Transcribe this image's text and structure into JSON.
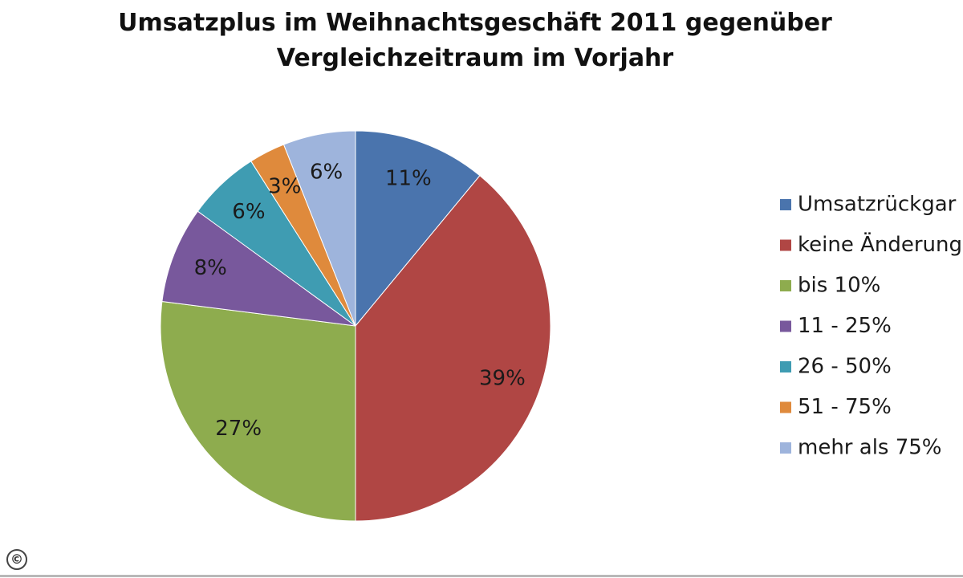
{
  "chart_data": {
    "type": "pie",
    "title_lines": [
      "Umsatzplus im Weihnachtsgeschäft 2011 gegenüber",
      "Vergleichzeitraum im Vorjahr"
    ],
    "slices": [
      {
        "label": "Umsatzrückgang",
        "legend_text": "Umsatzrückgar",
        "value": 11,
        "value_label": "11%",
        "color": "#4a74ad"
      },
      {
        "label": "keine Änderung",
        "legend_text": "keine Änderung",
        "value": 39,
        "value_label": "39%",
        "color": "#b04644"
      },
      {
        "label": "bis 10%",
        "legend_text": "bis 10%",
        "value": 27,
        "value_label": "27%",
        "color": "#8eac4e"
      },
      {
        "label": "11 - 25%",
        "legend_text": "11 - 25%",
        "value": 8,
        "value_label": "8%",
        "color": "#78589c"
      },
      {
        "label": "26 - 50%",
        "legend_text": "26 - 50%",
        "value": 6,
        "value_label": "6%",
        "color": "#3f9cb2"
      },
      {
        "label": "51 - 75%",
        "legend_text": "51 - 75%",
        "value": 3,
        "value_label": "3%",
        "color": "#df8a3c"
      },
      {
        "label": "mehr als 75%",
        "legend_text": "mehr als 75%",
        "value": 6,
        "value_label": "6%",
        "color": "#9eb4dc"
      }
    ],
    "legend_position": "right",
    "start_angle": "12 o'clock, clockwise"
  },
  "watermark": {
    "symbol": "©"
  }
}
